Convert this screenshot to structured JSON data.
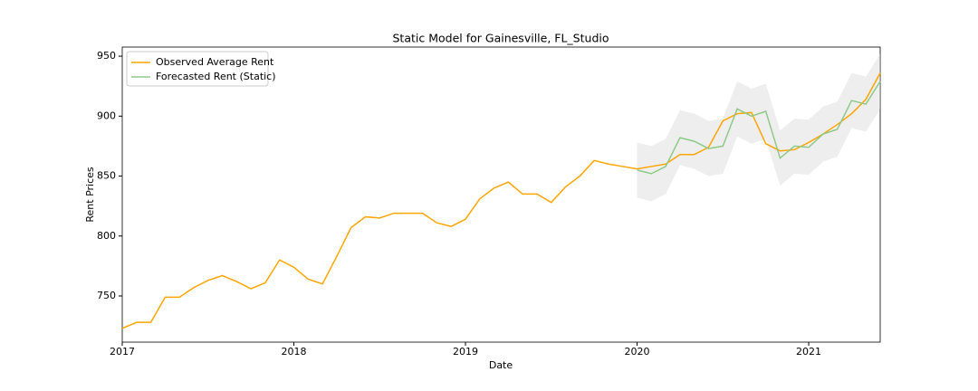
{
  "chart_data": {
    "type": "line",
    "title": "Static Model for Gainesville, FL_Studio",
    "x_label": "Date",
    "y_label": "Rent Prices",
    "x": [
      "2017-01",
      "2017-02",
      "2017-03",
      "2017-04",
      "2017-05",
      "2017-06",
      "2017-07",
      "2017-08",
      "2017-09",
      "2017-10",
      "2017-11",
      "2017-12",
      "2018-01",
      "2018-02",
      "2018-03",
      "2018-04",
      "2018-05",
      "2018-06",
      "2018-07",
      "2018-08",
      "2018-09",
      "2018-10",
      "2018-11",
      "2018-12",
      "2019-01",
      "2019-02",
      "2019-03",
      "2019-04",
      "2019-05",
      "2019-06",
      "2019-07",
      "2019-08",
      "2019-09",
      "2019-10",
      "2019-11",
      "2019-12",
      "2020-01",
      "2020-02",
      "2020-03",
      "2020-04",
      "2020-05",
      "2020-06",
      "2020-07",
      "2020-08",
      "2020-09",
      "2020-10",
      "2020-11",
      "2020-12",
      "2021-01",
      "2021-02",
      "2021-03",
      "2021-04",
      "2021-05",
      "2021-06"
    ],
    "series": [
      {
        "name": "Observed Average Rent",
        "color": "#ffa500",
        "values": [
          723,
          728,
          728,
          749,
          749,
          757,
          763,
          767,
          762,
          756,
          761,
          780,
          774,
          764,
          760,
          783,
          807,
          816,
          815,
          819,
          819,
          819,
          811,
          808,
          814,
          831,
          840,
          845,
          835,
          835,
          828,
          841,
          850,
          863,
          860,
          858,
          856,
          858,
          860,
          868,
          868,
          874,
          896,
          902,
          903,
          877,
          871,
          872,
          878,
          885,
          893,
          902,
          914,
          936
        ]
      },
      {
        "name": "Forecasted Rent (Static)",
        "color": "#8fc98a",
        "values": [
          null,
          null,
          null,
          null,
          null,
          null,
          null,
          null,
          null,
          null,
          null,
          null,
          null,
          null,
          null,
          null,
          null,
          null,
          null,
          null,
          null,
          null,
          null,
          null,
          null,
          null,
          null,
          null,
          null,
          null,
          null,
          null,
          null,
          null,
          null,
          null,
          855,
          852,
          858,
          882,
          879,
          873,
          875,
          906,
          900,
          904,
          865,
          875,
          874,
          885,
          889,
          913,
          910,
          929
        ]
      }
    ],
    "band": {
      "color": "#d9d9d9",
      "lower": [
        null,
        null,
        null,
        null,
        null,
        null,
        null,
        null,
        null,
        null,
        null,
        null,
        null,
        null,
        null,
        null,
        null,
        null,
        null,
        null,
        null,
        null,
        null,
        null,
        null,
        null,
        null,
        null,
        null,
        null,
        null,
        null,
        null,
        null,
        null,
        null,
        832,
        829,
        835,
        859,
        856,
        850,
        852,
        883,
        877,
        881,
        842,
        852,
        851,
        862,
        866,
        890,
        887,
        906
      ],
      "upper": [
        null,
        null,
        null,
        null,
        null,
        null,
        null,
        null,
        null,
        null,
        null,
        null,
        null,
        null,
        null,
        null,
        null,
        null,
        null,
        null,
        null,
        null,
        null,
        null,
        null,
        null,
        null,
        null,
        null,
        null,
        null,
        null,
        null,
        null,
        null,
        null,
        878,
        875,
        881,
        905,
        902,
        896,
        898,
        929,
        923,
        927,
        888,
        898,
        897,
        908,
        912,
        936,
        933,
        952
      ]
    },
    "xlim": [
      "2017-01",
      "2021-06"
    ],
    "xticks": [
      {
        "value": "2017-01",
        "label": "2017"
      },
      {
        "value": "2018-01",
        "label": "2018"
      },
      {
        "value": "2019-01",
        "label": "2019"
      },
      {
        "value": "2020-01",
        "label": "2020"
      },
      {
        "value": "2021-01",
        "label": "2021"
      }
    ],
    "ylim": [
      711.5,
      957.6
    ],
    "yticks": [
      750,
      800,
      850,
      900,
      950
    ],
    "legend": "upper left",
    "grid": false
  }
}
